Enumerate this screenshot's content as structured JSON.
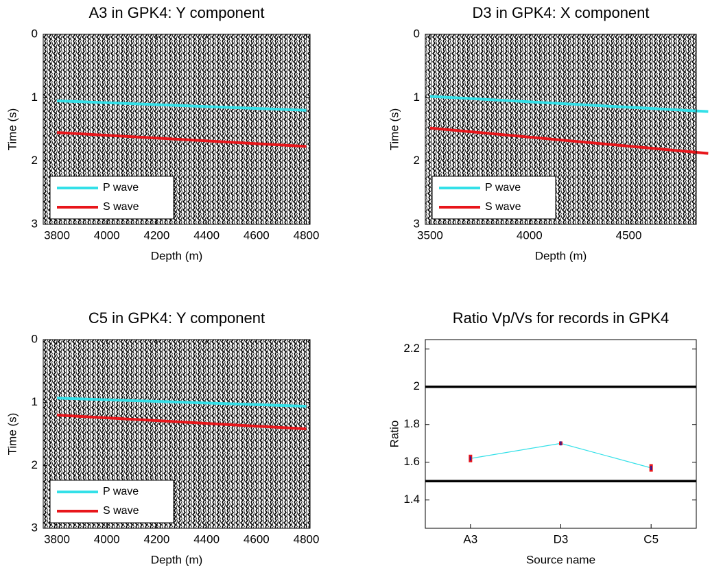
{
  "chart_data": [
    {
      "type": "line",
      "title": "A3 in GPK4: Y component",
      "x_label": "Depth (m)",
      "y_label": "Time (s)",
      "x": [
        3800,
        4800
      ],
      "series": [
        {
          "name": "P wave",
          "color": "#33e0e8",
          "values": [
            1.05,
            1.2
          ]
        },
        {
          "name": "S wave",
          "color": "#e8161b",
          "values": [
            1.55,
            1.77
          ]
        }
      ],
      "xlim": [
        3745,
        4815
      ],
      "xticks": [
        3800,
        4000,
        4200,
        4400,
        4600,
        4800
      ],
      "ylim": [
        3,
        0
      ],
      "yticks": [
        0,
        1,
        2,
        3
      ],
      "legend": "lower left"
    },
    {
      "type": "line",
      "title": "D3 in GPK4: X component",
      "x_label": "Depth (m)",
      "y_label": "Time (s)",
      "x": [
        3500,
        4900
      ],
      "series": [
        {
          "name": "P wave",
          "color": "#33e0e8",
          "values": [
            0.98,
            1.22
          ]
        },
        {
          "name": "S wave",
          "color": "#e8161b",
          "values": [
            1.48,
            1.88
          ]
        }
      ],
      "xlim": [
        3476,
        4840
      ],
      "xticks": [
        3500,
        4000,
        4500
      ],
      "ylim": [
        3,
        0
      ],
      "yticks": [
        0,
        1,
        2,
        3
      ],
      "legend": "lower left"
    },
    {
      "type": "line",
      "title": "C5 in GPK4: Y component",
      "x_label": "Depth (m)",
      "y_label": "Time (s)",
      "x": [
        3800,
        4800
      ],
      "series": [
        {
          "name": "P wave",
          "color": "#33e0e8",
          "values": [
            0.93,
            1.06
          ]
        },
        {
          "name": "S wave",
          "color": "#e8161b",
          "values": [
            1.2,
            1.42
          ]
        }
      ],
      "xlim": [
        3745,
        4815
      ],
      "xticks": [
        3800,
        4000,
        4200,
        4400,
        4600,
        4800
      ],
      "ylim": [
        3,
        0
      ],
      "yticks": [
        0,
        1,
        2,
        3
      ],
      "legend": "lower left"
    },
    {
      "type": "line",
      "title": "Ratio Vp/Vs for records in GPK4",
      "x_label": "Source name",
      "y_label": "Ratio",
      "categories": [
        "A3",
        "D3",
        "C5"
      ],
      "series": [
        {
          "color": "#33e0e8",
          "values": [
            1.62,
            1.7,
            1.57
          ],
          "errors": [
            0.02,
            0.01,
            0.02
          ]
        }
      ],
      "reference_lines": [
        2,
        1.5
      ],
      "ylim": [
        1.25,
        2.25
      ],
      "yticks": [
        1.4,
        1.6,
        1.8,
        2,
        2.2
      ]
    }
  ]
}
